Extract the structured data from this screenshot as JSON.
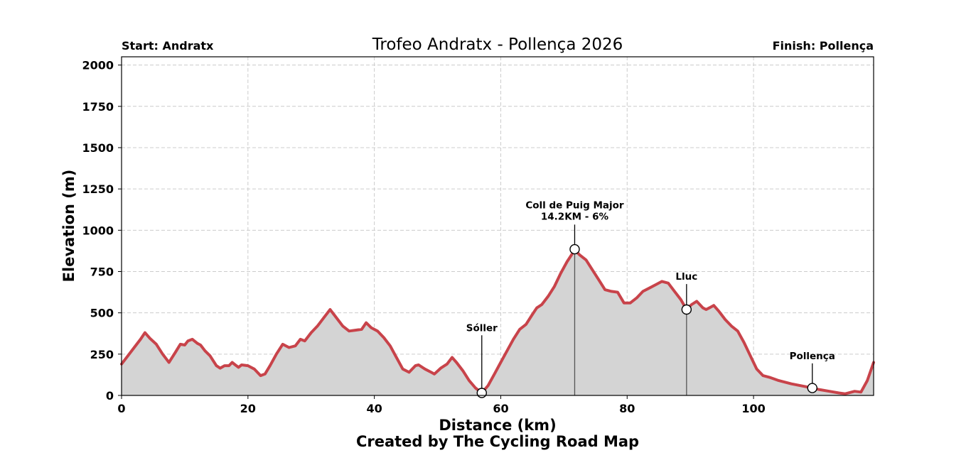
{
  "chart_data": {
    "type": "area",
    "title": "Trofeo Andratx - Pollença 2026",
    "start_label": "Start: Andratx",
    "finish_label": "Finish: Pollença",
    "xlabel": "Distance (km)",
    "ylabel": "Elevation (m)",
    "footer": "Created by The Cycling Road Map",
    "xlim": [
      0,
      119
    ],
    "ylim": [
      0,
      2050
    ],
    "grid": true,
    "x_ticks": [
      0,
      20,
      40,
      60,
      80,
      100
    ],
    "y_ticks": [
      0,
      250,
      500,
      750,
      1000,
      1250,
      1500,
      1750,
      2000
    ],
    "line_color": "#c8434a",
    "fill_color": "#d4d4d4",
    "series": [
      {
        "name": "Elevation",
        "x": [
          0,
          1,
          2,
          3,
          3.7,
          4.5,
          5.5,
          6.5,
          7.5,
          8.5,
          9.3,
          10,
          10.5,
          11.2,
          12,
          12.5,
          13.2,
          14,
          15,
          15.6,
          16.3,
          17,
          17.5,
          18,
          18.5,
          19,
          20,
          21,
          22,
          22.7,
          23.5,
          24.5,
          25.5,
          26.5,
          27.5,
          28.3,
          29,
          30,
          31,
          32,
          33,
          34,
          35,
          36,
          37,
          38,
          38.7,
          39.5,
          40.5,
          41.5,
          42.5,
          43.5,
          44.5,
          45.5,
          46.5,
          47,
          48,
          49,
          49.5,
          50.5,
          51.5,
          52.3,
          53,
          54,
          55,
          56,
          57,
          58,
          59,
          60,
          61,
          62,
          63,
          64,
          65,
          65.7,
          66.5,
          67.5,
          68.5,
          69.5,
          70.5,
          71.7,
          72.5,
          73.5,
          74.5,
          75.5,
          76.5,
          77.5,
          78.5,
          79.5,
          80.5,
          81.5,
          82.5,
          83.5,
          84.5,
          85.5,
          86.5,
          87.5,
          88.5,
          89.4,
          90.2,
          91,
          92,
          92.5,
          93,
          93.7,
          94.5,
          95.5,
          96.5,
          97.5,
          98.5,
          99.5,
          100.5,
          101.5,
          102.5,
          104,
          106,
          108,
          109.3,
          110.5,
          112,
          113.5,
          114.5,
          116,
          117,
          118,
          119
        ],
        "y": [
          190,
          240,
          290,
          340,
          380,
          345,
          310,
          250,
          200,
          260,
          310,
          305,
          330,
          340,
          315,
          305,
          270,
          240,
          180,
          165,
          180,
          180,
          200,
          185,
          170,
          185,
          180,
          160,
          120,
          130,
          180,
          250,
          310,
          290,
          300,
          340,
          330,
          380,
          420,
          470,
          520,
          470,
          420,
          390,
          395,
          400,
          440,
          410,
          390,
          350,
          300,
          230,
          160,
          140,
          180,
          185,
          160,
          140,
          130,
          165,
          190,
          230,
          200,
          150,
          90,
          45,
          15,
          60,
          130,
          200,
          270,
          340,
          400,
          430,
          490,
          530,
          550,
          600,
          660,
          740,
          810,
          880,
          850,
          820,
          760,
          700,
          640,
          630,
          625,
          560,
          560,
          590,
          630,
          650,
          670,
          690,
          680,
          630,
          580,
          520,
          550,
          570,
          530,
          520,
          530,
          545,
          510,
          460,
          420,
          390,
          320,
          240,
          160,
          120,
          110,
          90,
          70,
          55,
          45,
          35,
          25,
          15,
          10,
          25,
          20,
          90,
          200
        ]
      }
    ],
    "annotations": [
      {
        "label": "Sóller",
        "x": 57,
        "y": 15,
        "label_y": 390,
        "drop_line": false
      },
      {
        "label": "Coll de Puig Major",
        "sublabel": "14.2KM - 6%",
        "x": 71.7,
        "y": 885,
        "label_y": 1060,
        "drop_line": true
      },
      {
        "label": "Lluc",
        "x": 89.4,
        "y": 520,
        "label_y": 700,
        "drop_line": true
      },
      {
        "label": "Pollença",
        "x": 109.3,
        "y": 45,
        "label_y": 220,
        "drop_line": false
      }
    ]
  }
}
